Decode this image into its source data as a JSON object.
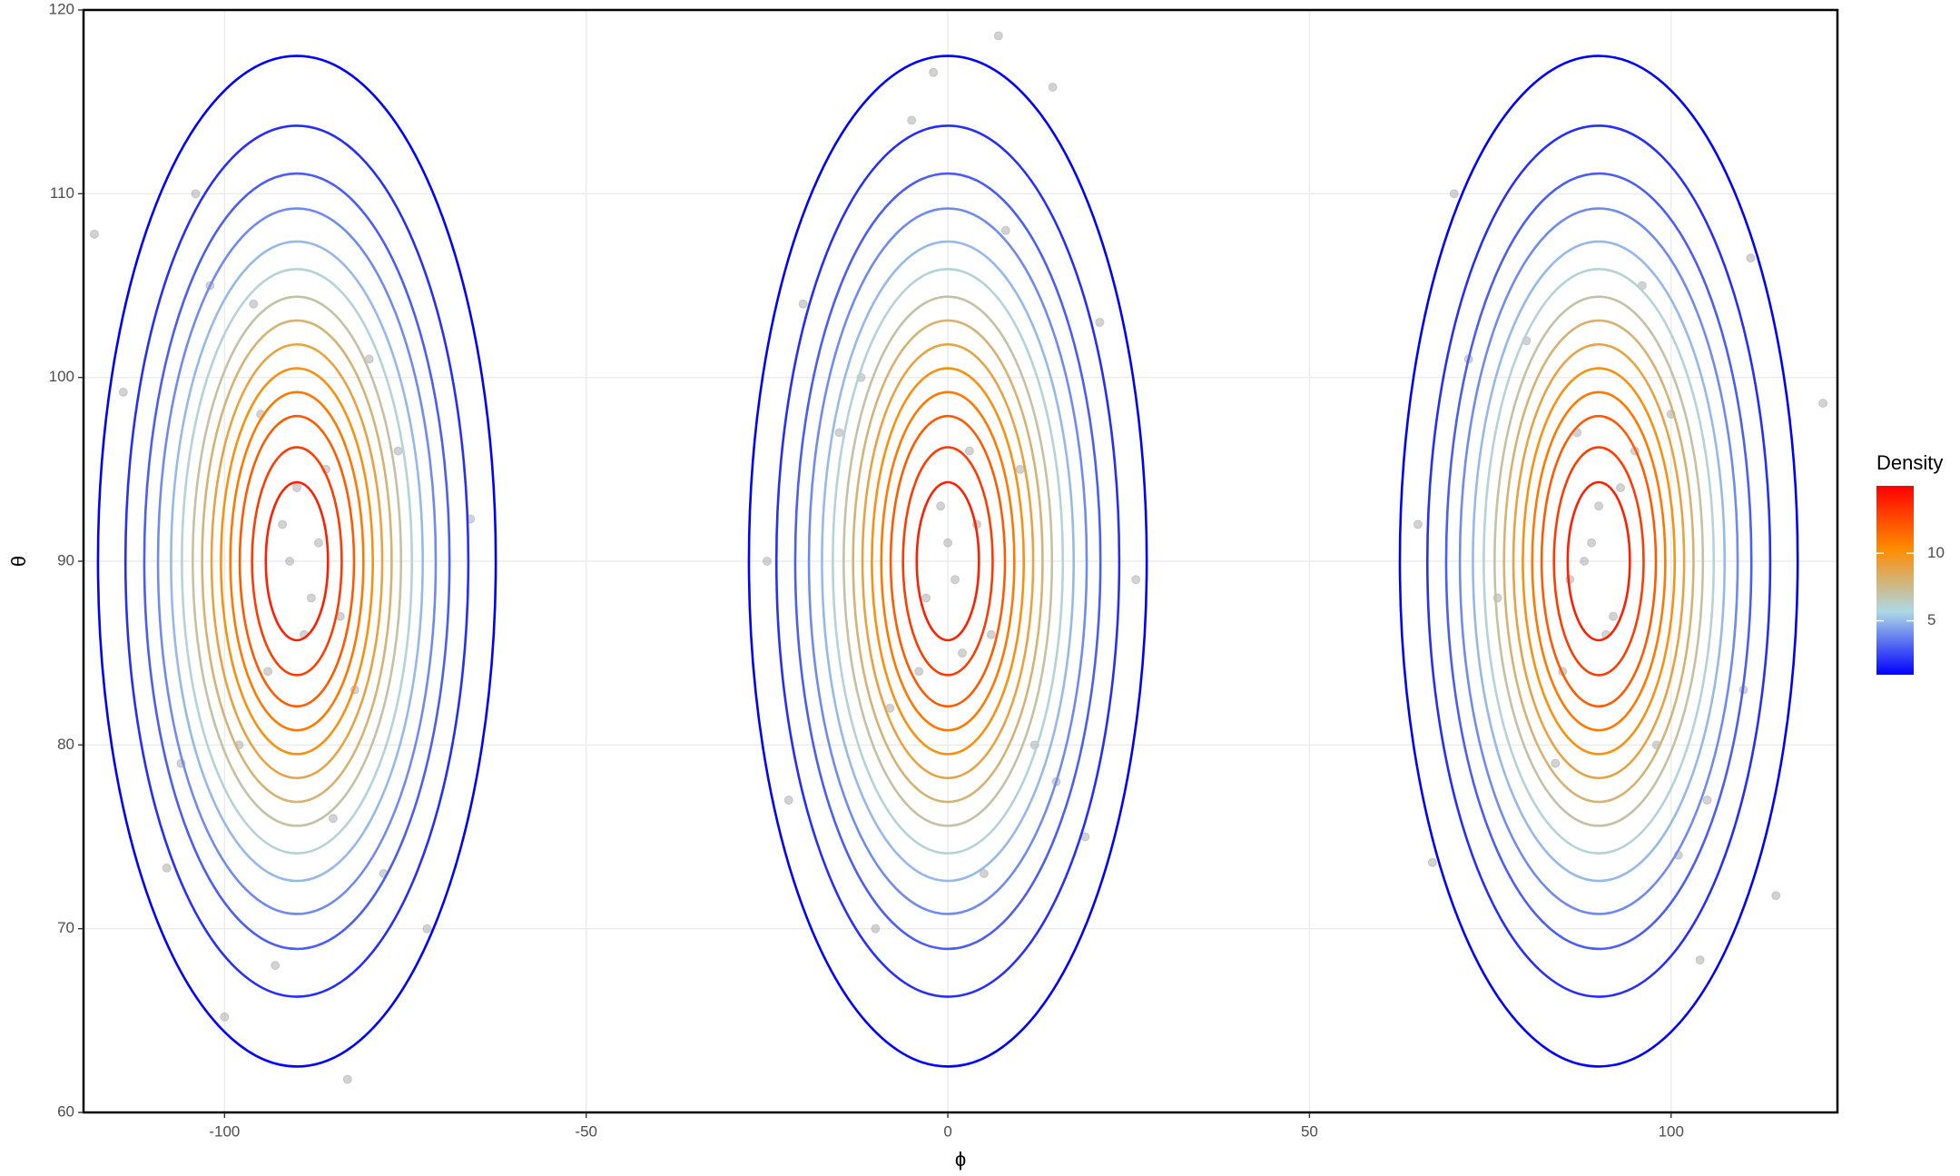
{
  "chart_data": {
    "type": "contour",
    "x_label": "ϕ",
    "y_label": "θ",
    "xlim": [
      -119.5,
      123
    ],
    "ylim": [
      60,
      120
    ],
    "xticks": [
      -100,
      -50,
      0,
      50,
      100
    ],
    "yticks": [
      60,
      70,
      80,
      90,
      100,
      110,
      120
    ],
    "grid": true,
    "contours": {
      "centers_x": [
        -90,
        0,
        90
      ],
      "center_y": 90,
      "levels": [
        1,
        2,
        3,
        4,
        5,
        6,
        7,
        8,
        9,
        10,
        11,
        12,
        13,
        14
      ],
      "radii": [
        27.5,
        23.7,
        21.1,
        19.2,
        17.4,
        15.9,
        14.4,
        13.1,
        11.8,
        10.5,
        9.2,
        7.9,
        6.2,
        4.3
      ]
    },
    "legend": {
      "title": "Density",
      "lim": [
        1,
        15
      ],
      "ticks": [
        5,
        10
      ],
      "colors": [
        "#0000ff",
        "#add8e6",
        "#ff8c00",
        "#ff0000"
      ]
    },
    "point_color": "#a6a6a6",
    "points": {
      "x": [
        -118,
        -108,
        -100,
        -83,
        -66,
        -114,
        -104,
        -96,
        -92,
        -88,
        -86,
        -94,
        -80,
        -76,
        -98,
        -85,
        -91,
        -89,
        -78,
        -102,
        -72,
        -95,
        -87,
        -82,
        -106,
        -93,
        -84,
        -90,
        7,
        14.5,
        -2,
        -5,
        26,
        -25,
        -12,
        4,
        -3,
        2,
        0,
        10,
        -8,
        15,
        -15,
        6,
        -1,
        1,
        3,
        -4,
        19,
        -20,
        8,
        -10,
        12,
        21,
        -22,
        5,
        114.5,
        121,
        65,
        67,
        104,
        111,
        80,
        95,
        88,
        92,
        90,
        85,
        100,
        98,
        76,
        91,
        89,
        93,
        86,
        105,
        72,
        84,
        96,
        110,
        70,
        101,
        87
      ],
      "y": [
        107.8,
        73.3,
        65.2,
        61.8,
        92.3,
        99.2,
        110,
        104,
        92,
        88,
        95,
        84,
        101,
        96,
        80,
        76,
        90,
        86,
        73,
        105,
        70,
        98,
        91,
        83,
        79,
        68,
        87,
        94,
        118.6,
        115.8,
        116.6,
        114,
        89,
        90,
        100,
        92,
        88,
        85,
        91,
        95,
        82,
        78,
        97,
        86,
        93,
        89,
        96,
        84,
        75,
        104,
        108,
        70,
        80,
        103,
        77,
        73,
        71.8,
        98.6,
        92,
        73.6,
        68.3,
        106.5,
        102,
        96,
        90,
        87,
        93,
        84,
        98,
        80,
        88,
        86,
        91,
        94,
        89,
        77,
        101,
        79,
        105,
        83,
        110,
        74,
        97
      ]
    }
  }
}
